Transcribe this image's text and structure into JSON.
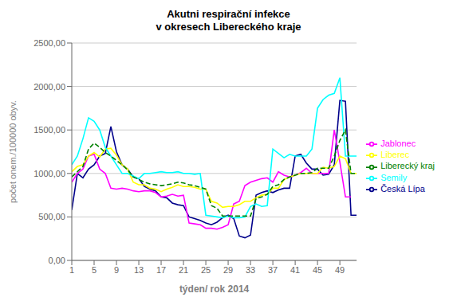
{
  "chart_data": {
    "type": "line",
    "title": "Akutni respirační infekce\nv okresech Libereckého kraje",
    "x_label": "týden/ rok 2014",
    "y_label": "počet onem./100000 obyv.",
    "x": [
      1,
      2,
      3,
      4,
      5,
      6,
      7,
      8,
      9,
      10,
      11,
      12,
      13,
      14,
      15,
      16,
      17,
      18,
      19,
      20,
      21,
      22,
      23,
      24,
      25,
      26,
      27,
      28,
      29,
      30,
      31,
      32,
      33,
      34,
      35,
      36,
      37,
      38,
      39,
      40,
      41,
      42,
      43,
      44,
      45,
      46,
      47,
      48,
      49,
      50,
      51,
      52
    ],
    "xlim": [
      1,
      52
    ],
    "xticks": [
      1,
      5,
      9,
      13,
      17,
      21,
      25,
      29,
      33,
      37,
      41,
      45,
      49
    ],
    "ylim": [
      0,
      2500
    ],
    "yticks": [
      {
        "value": 0,
        "label": "0,00"
      },
      {
        "value": 500,
        "label": "500,00"
      },
      {
        "value": 1000,
        "label": "1000,00"
      },
      {
        "value": 1500,
        "label": "1500,00"
      },
      {
        "value": 2000,
        "label": "2000,00"
      },
      {
        "value": 2500,
        "label": "2500,00"
      }
    ],
    "grid": "y",
    "legend": "right",
    "series": [
      {
        "name": "Česká Lípa",
        "color": "#00008B",
        "line_style": "solid",
        "values": [
          580,
          1000,
          950,
          1050,
          1100,
          1200,
          1230,
          1540,
          1250,
          1100,
          1050,
          960,
          940,
          850,
          820,
          800,
          730,
          720,
          660,
          640,
          630,
          500,
          480,
          460,
          430,
          410,
          440,
          490,
          520,
          480,
          280,
          260,
          290,
          750,
          780,
          800,
          780,
          810,
          830,
          830,
          1200,
          1220,
          1120,
          1050,
          1050,
          980,
          990,
          1100,
          1840,
          1830,
          520,
          520
        ]
      },
      {
        "name": "Jablonec",
        "color": "#FF00FF",
        "line_style": "solid",
        "values": [
          900,
          1000,
          1050,
          1200,
          1220,
          1050,
          1000,
          830,
          820,
          830,
          820,
          800,
          790,
          800,
          800,
          780,
          730,
          740,
          760,
          740,
          750,
          430,
          420,
          410,
          370,
          370,
          360,
          380,
          410,
          650,
          680,
          860,
          900,
          920,
          940,
          950,
          900,
          1020,
          980,
          960,
          980,
          1010,
          1060,
          1000,
          1000,
          1000,
          1000,
          1500,
          1130,
          730,
          730,
          null
        ]
      },
      {
        "name": "Liberec",
        "color": "#FFFF00",
        "line_style": "solid",
        "values": [
          1020,
          1080,
          1100,
          1200,
          1240,
          1190,
          1280,
          1290,
          1210,
          1100,
          1050,
          900,
          870,
          870,
          830,
          820,
          790,
          820,
          840,
          870,
          850,
          850,
          840,
          820,
          820,
          680,
          660,
          610,
          620,
          620,
          640,
          680,
          680,
          720,
          750,
          760,
          830,
          830,
          930,
          960,
          980,
          1000,
          1000,
          1000,
          1000,
          1070,
          1060,
          1080,
          1200,
          1170,
          1000,
          1000
        ]
      },
      {
        "name": "Semily",
        "color": "#00FFFF",
        "line_style": "solid",
        "values": [
          1100,
          1200,
          1400,
          1640,
          1600,
          1500,
          1300,
          1200,
          1100,
          1000,
          1000,
          970,
          940,
          1000,
          1000,
          1010,
          1020,
          1010,
          1010,
          1020,
          1000,
          1000,
          990,
          1000,
          520,
          510,
          500,
          490,
          510,
          490,
          490,
          500,
          620,
          650,
          620,
          630,
          1280,
          1230,
          1180,
          1220,
          1200,
          1200,
          1200,
          1280,
          1750,
          1850,
          1900,
          1920,
          2100,
          1200,
          1200,
          1200
        ]
      },
      {
        "name": "Liberecký kraj",
        "color": "#008000",
        "line_style": "dashed",
        "values": [
          960,
          1020,
          1080,
          1280,
          1350,
          1300,
          1240,
          1200,
          1150,
          1100,
          1040,
          960,
          930,
          900,
          880,
          870,
          860,
          870,
          880,
          900,
          890,
          870,
          860,
          840,
          820,
          630,
          600,
          510,
          510,
          510,
          510,
          510,
          510,
          710,
          730,
          760,
          850,
          870,
          930,
          960,
          980,
          1000,
          1000,
          1010,
          1060,
          1060,
          1060,
          1200,
          1380,
          1500,
          1000,
          1000
        ]
      }
    ]
  }
}
